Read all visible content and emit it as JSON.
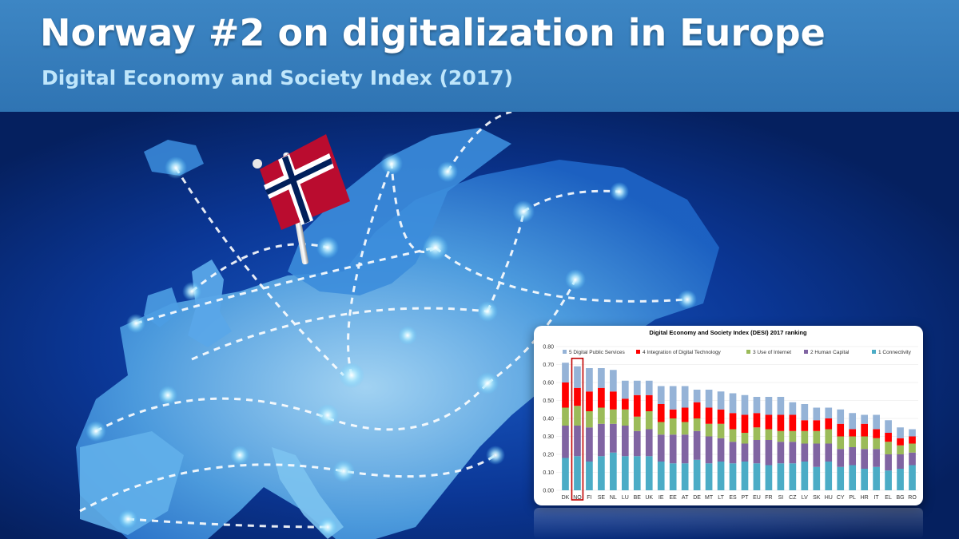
{
  "header": {
    "title": "Norway #2 on digitalization in Europe",
    "subtitle": "Digital Economy and Society Index (2017)"
  },
  "colors": {
    "header_bg": "#3479b8",
    "title": "#ffffff",
    "subtitle": "#bfe6fb",
    "connectivity": "#4bacc6",
    "human_capital": "#8064a2",
    "use_of_internet": "#9bbb59",
    "integration_digital_tech": "#ff0000",
    "digital_public_services": "#95b3d7",
    "highlight_box": "#c00000"
  },
  "flag_icon": "norway-flag-icon",
  "chart_data": {
    "type": "bar",
    "stacked": true,
    "title": "Digital Economy and Society Index (DESI) 2017 ranking",
    "categories": [
      "DK",
      "NO",
      "FI",
      "SE",
      "NL",
      "LU",
      "BE",
      "UK",
      "IE",
      "EE",
      "AT",
      "DE",
      "MT",
      "LT",
      "ES",
      "PT",
      "EU",
      "FR",
      "SI",
      "CZ",
      "LV",
      "SK",
      "HU",
      "CY",
      "PL",
      "HR",
      "IT",
      "EL",
      "BG",
      "RO"
    ],
    "highlight": "NO",
    "ylim": [
      0,
      0.8
    ],
    "yticks": [
      "0.00",
      "0.10",
      "0.20",
      "0.30",
      "0.40",
      "0.50",
      "0.60",
      "0.70",
      "0.80"
    ],
    "legend_position": "top",
    "series": [
      {
        "name": "1 Connectivity",
        "color": "#4bacc6",
        "values": [
          0.18,
          0.19,
          0.16,
          0.19,
          0.21,
          0.19,
          0.19,
          0.19,
          0.16,
          0.15,
          0.15,
          0.17,
          0.15,
          0.16,
          0.15,
          0.16,
          0.15,
          0.14,
          0.15,
          0.15,
          0.16,
          0.13,
          0.16,
          0.13,
          0.14,
          0.12,
          0.13,
          0.11,
          0.12,
          0.14
        ]
      },
      {
        "name": "2 Human Capital",
        "color": "#8064a2",
        "values": [
          0.18,
          0.17,
          0.19,
          0.18,
          0.16,
          0.17,
          0.14,
          0.15,
          0.15,
          0.16,
          0.16,
          0.16,
          0.15,
          0.13,
          0.12,
          0.1,
          0.13,
          0.14,
          0.12,
          0.12,
          0.1,
          0.13,
          0.1,
          0.1,
          0.1,
          0.11,
          0.1,
          0.09,
          0.08,
          0.07
        ]
      },
      {
        "name": "3 Use of Internet",
        "color": "#9bbb59",
        "values": [
          0.1,
          0.11,
          0.09,
          0.09,
          0.08,
          0.09,
          0.08,
          0.1,
          0.07,
          0.09,
          0.07,
          0.07,
          0.07,
          0.08,
          0.07,
          0.06,
          0.07,
          0.06,
          0.06,
          0.06,
          0.07,
          0.07,
          0.08,
          0.07,
          0.06,
          0.07,
          0.06,
          0.07,
          0.05,
          0.05
        ]
      },
      {
        "name": "4 Integration of Digital Technology",
        "color": "#ff0000",
        "values": [
          0.14,
          0.1,
          0.11,
          0.11,
          0.1,
          0.06,
          0.12,
          0.09,
          0.1,
          0.05,
          0.08,
          0.09,
          0.09,
          0.08,
          0.09,
          0.1,
          0.08,
          0.08,
          0.09,
          0.09,
          0.06,
          0.06,
          0.06,
          0.07,
          0.04,
          0.07,
          0.05,
          0.05,
          0.04,
          0.04
        ]
      },
      {
        "name": "5 Digital Public Services",
        "color": "#95b3d7",
        "values": [
          0.11,
          0.12,
          0.13,
          0.11,
          0.12,
          0.1,
          0.08,
          0.08,
          0.1,
          0.13,
          0.12,
          0.07,
          0.1,
          0.1,
          0.11,
          0.11,
          0.09,
          0.1,
          0.1,
          0.07,
          0.09,
          0.07,
          0.06,
          0.08,
          0.09,
          0.05,
          0.08,
          0.07,
          0.06,
          0.04
        ]
      }
    ]
  }
}
